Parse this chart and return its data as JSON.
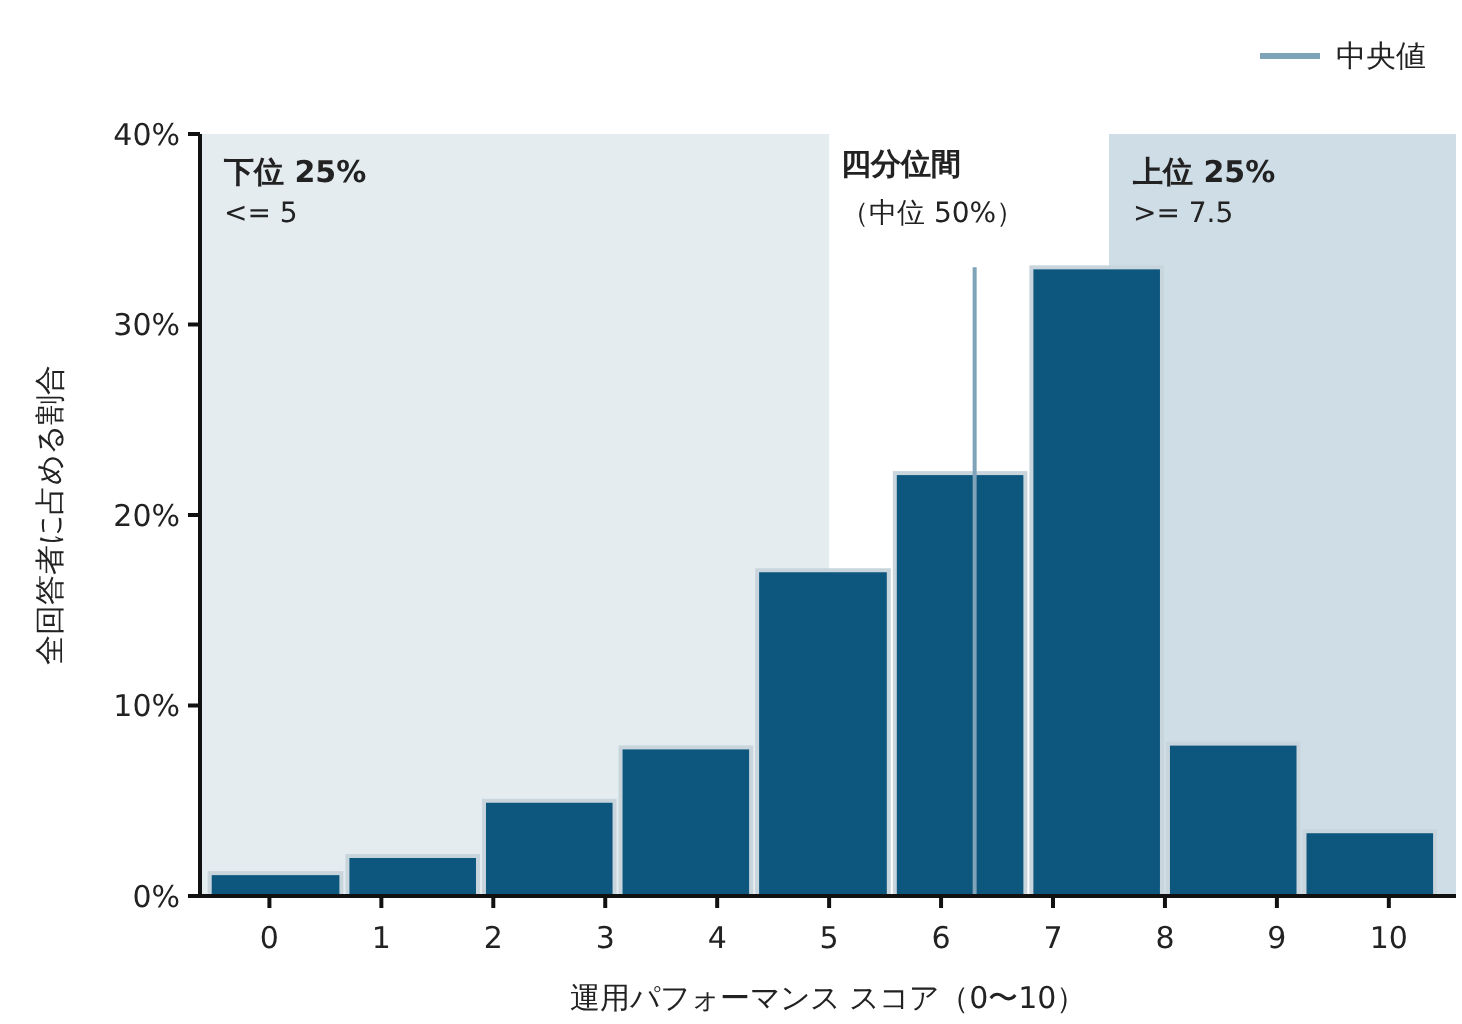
{
  "chart_data": {
    "type": "histogram",
    "xlabel": "運用パフォーマンス スコア（0〜10）",
    "ylabel": "全回答者に占める割合",
    "bins": [
      -0.56,
      0.67,
      1.89,
      3.11,
      4.33,
      5.56,
      6.78,
      8.0,
      9.22,
      10.44
    ],
    "values": [
      1.2,
      2.1,
      5.0,
      7.8,
      17.1,
      22.2,
      33.0,
      8.0,
      3.4
    ],
    "color": "#0d567e",
    "xlim": [
      -0.62,
      10.6
    ],
    "xticks": [
      0,
      1,
      2,
      3,
      4,
      5,
      6,
      7,
      8,
      9,
      10
    ],
    "ylim": [
      0,
      40
    ],
    "yticks": [
      {
        "value": 0,
        "label": "0%"
      },
      {
        "value": 10,
        "label": "10%"
      },
      {
        "value": 20,
        "label": "20%"
      },
      {
        "value": 30,
        "label": "30%"
      },
      {
        "value": 40,
        "label": "40%"
      }
    ],
    "bands": [
      {
        "axis": "x",
        "from": -0.62,
        "to": 5,
        "label": "下位 25%",
        "color": "#e4ecf0"
      },
      {
        "axis": "x",
        "from": 7.5,
        "to": 10.6,
        "label": "上位 25%",
        "color": "#cfdde6"
      }
    ],
    "series": [
      {
        "name": "中央値",
        "type": "line",
        "x": [
          6.3,
          6.3
        ],
        "values": [
          0,
          33
        ],
        "color": "#7fa3b8"
      }
    ],
    "annotations": [
      "<= 5",
      ">= 7.5",
      "四分位間",
      "（中位 50%）"
    ],
    "legend": "top right"
  }
}
